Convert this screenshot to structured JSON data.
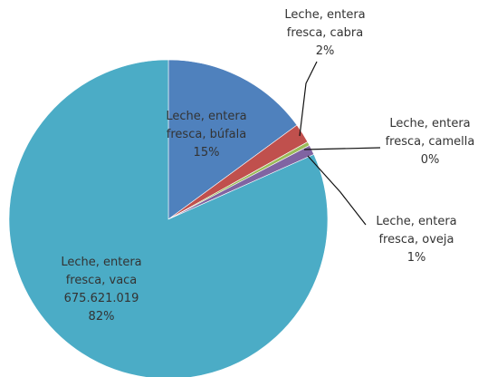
{
  "chart_data": {
    "type": "pie",
    "title": "",
    "slices": [
      {
        "label": "Leche, entera fresca, búfala",
        "display_lines": [
          "Leche, entera",
          "fresca, búfala",
          "15%"
        ],
        "value": 15,
        "percent_text": "15%",
        "color": "#4F81BD"
      },
      {
        "label": "Leche, entera fresca, cabra",
        "display_lines": [
          "Leche, entera",
          "fresca, cabra",
          "2%"
        ],
        "value": 2,
        "percent_text": "2%",
        "color": "#C0504D"
      },
      {
        "label": "Leche, entera fresca, camella",
        "display_lines": [
          "Leche, entera",
          "fresca, camella",
          "0%"
        ],
        "value": 0.4,
        "percent_text": "0%",
        "color": "#9BBB59"
      },
      {
        "label": "Leche, entera fresca, oveja",
        "display_lines": [
          "Leche, entera",
          "fresca, oveja",
          "1%"
        ],
        "value": 1,
        "percent_text": "1%",
        "color": "#8064A2"
      },
      {
        "label": "Leche, entera fresca, vaca",
        "display_lines": [
          "Leche, entera",
          "fresca, vaca",
          "675.621.019",
          "82%"
        ],
        "value": 82,
        "percent_text": "82%",
        "amount_text": "675.621.019",
        "color": "#4BACC6"
      }
    ],
    "legend": "none"
  }
}
